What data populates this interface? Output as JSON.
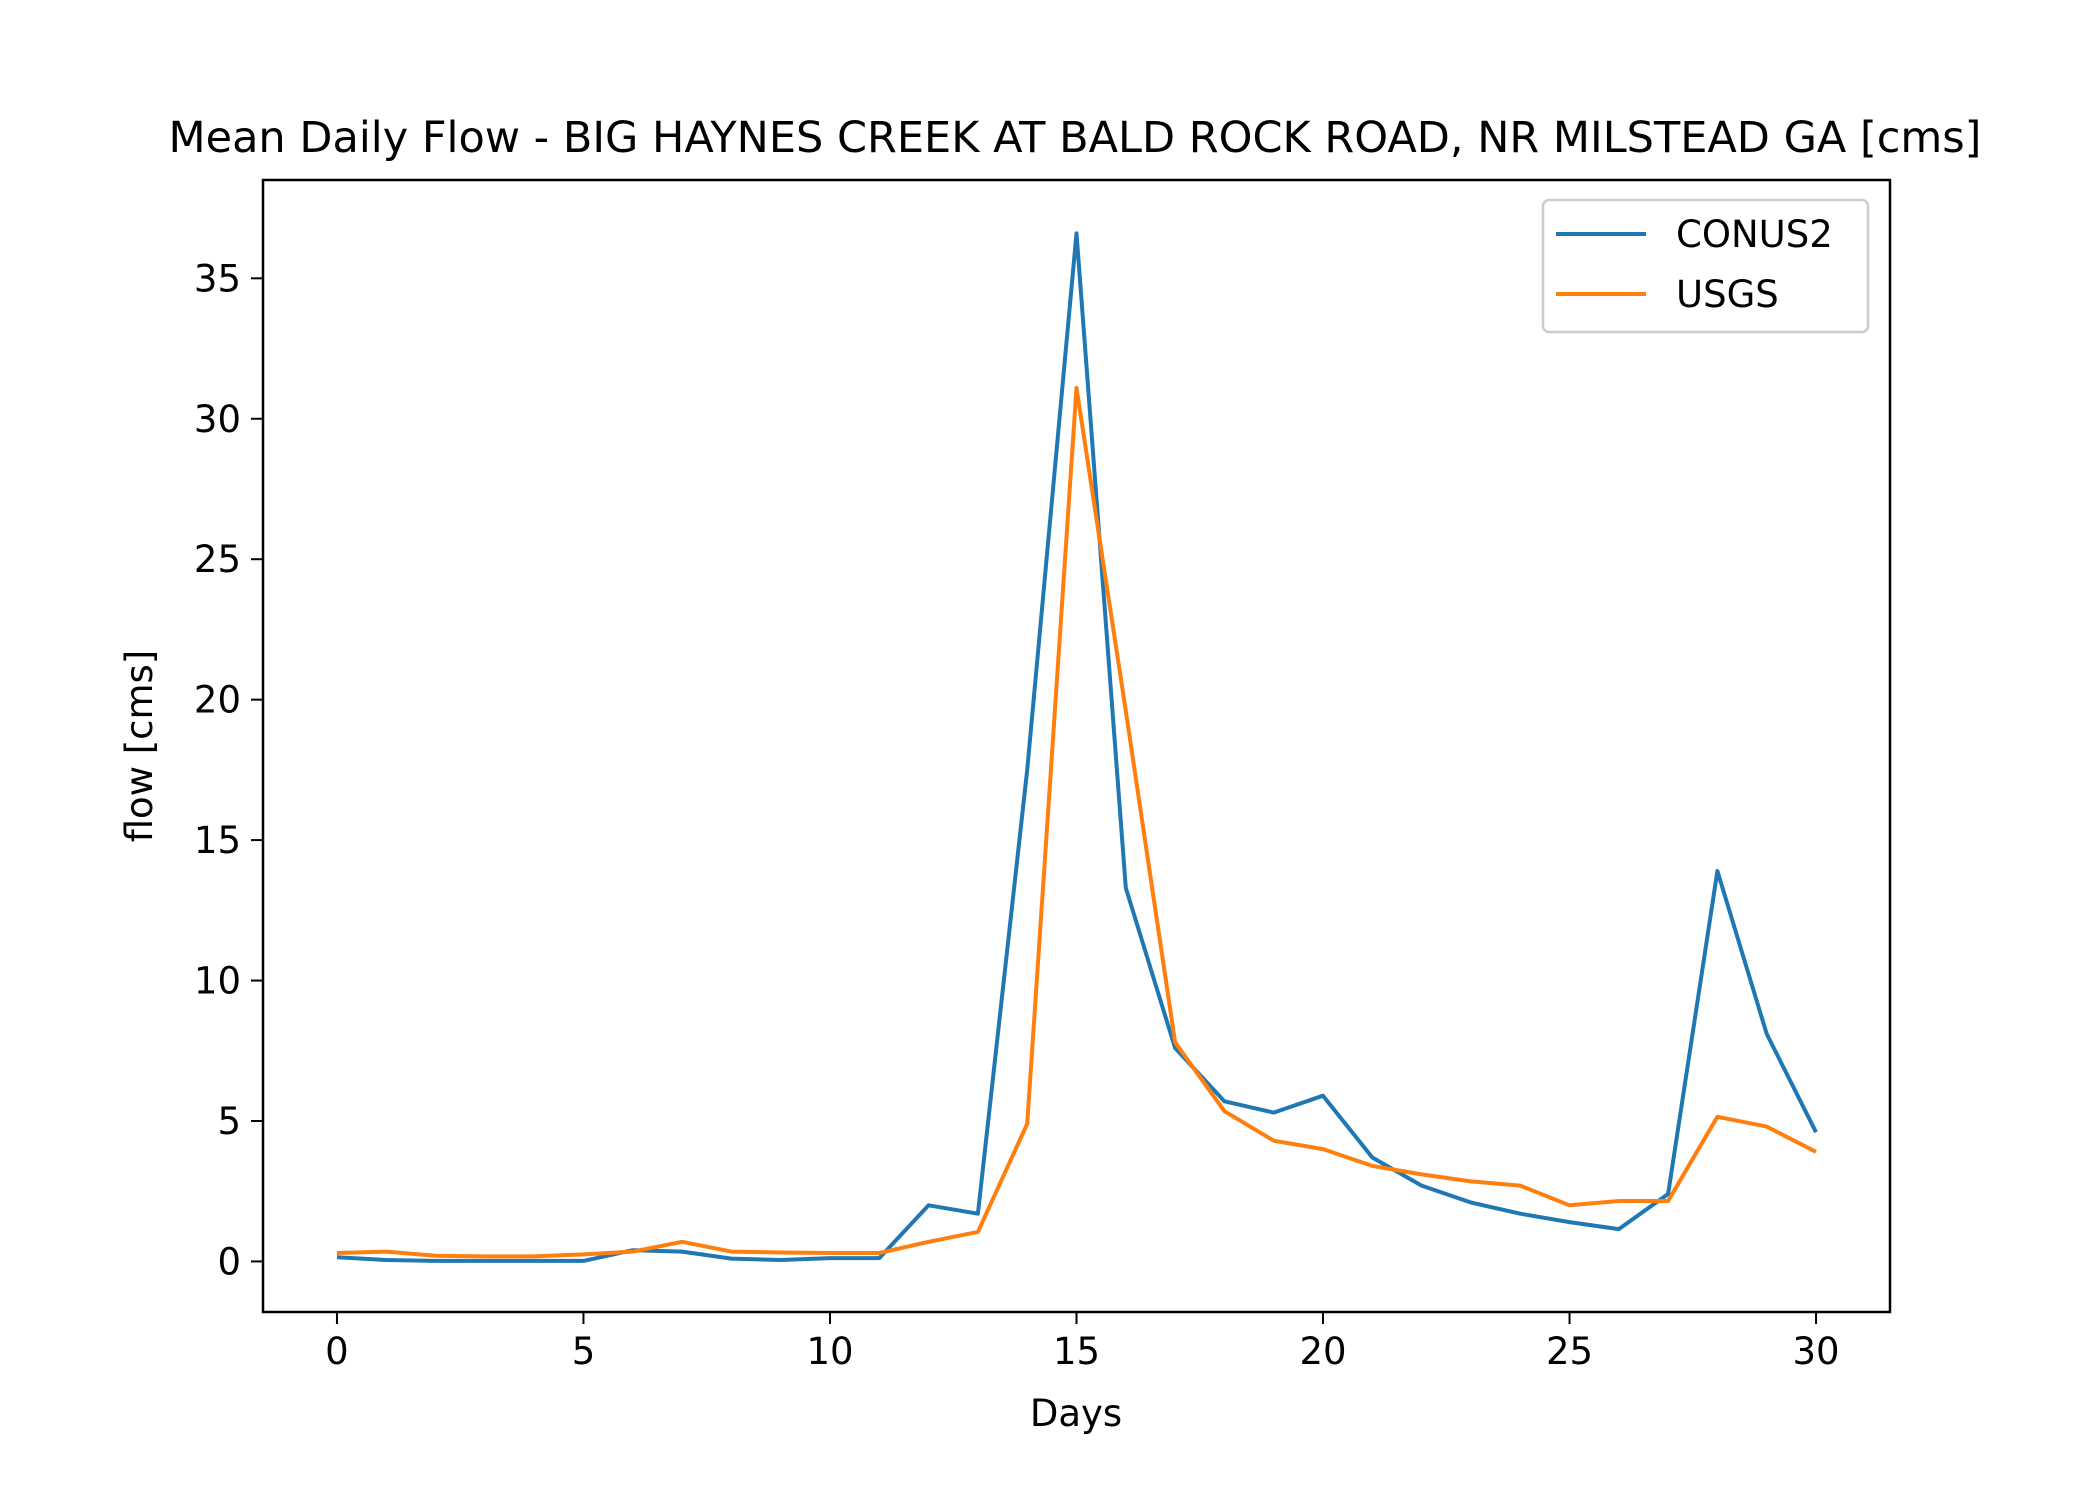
{
  "chart_data": {
    "type": "line",
    "title": "Mean Daily Flow - BIG HAYNES CREEK AT BALD ROCK ROAD, NR MILSTEAD GA [cms]",
    "xlabel": "Days",
    "ylabel": "flow [cms]",
    "xlim": [
      -1.5,
      31.5
    ],
    "ylim": [
      -1.8,
      38.5
    ],
    "xticks": [
      0,
      5,
      10,
      15,
      20,
      25,
      30
    ],
    "yticks": [
      0,
      5,
      10,
      15,
      20,
      25,
      30,
      35
    ],
    "grid": false,
    "legend_position": "top-right",
    "x": [
      0,
      1,
      2,
      3,
      4,
      5,
      6,
      7,
      8,
      9,
      10,
      11,
      12,
      13,
      14,
      15,
      16,
      17,
      18,
      19,
      20,
      21,
      22,
      23,
      24,
      25,
      26,
      27,
      28,
      29,
      30
    ],
    "series": [
      {
        "name": "CONUS2",
        "color": "#1f77b4",
        "values": [
          0.15,
          0.05,
          0.02,
          0.02,
          0.02,
          0.02,
          0.4,
          0.35,
          0.1,
          0.05,
          0.12,
          0.12,
          2.0,
          1.7,
          17.5,
          36.6,
          13.3,
          7.6,
          5.7,
          5.3,
          5.9,
          3.7,
          2.7,
          2.1,
          1.7,
          1.4,
          1.15,
          2.4,
          13.9,
          8.1,
          4.6
        ]
      },
      {
        "name": "USGS",
        "color": "#ff7f0e",
        "values": [
          0.3,
          0.35,
          0.2,
          0.18,
          0.18,
          0.25,
          0.35,
          0.7,
          0.35,
          0.32,
          0.3,
          0.3,
          0.7,
          1.05,
          4.9,
          31.1,
          19.6,
          7.8,
          5.35,
          4.3,
          4.0,
          3.4,
          3.1,
          2.85,
          2.7,
          2.0,
          2.15,
          2.15,
          5.15,
          4.8,
          3.9
        ]
      }
    ]
  }
}
